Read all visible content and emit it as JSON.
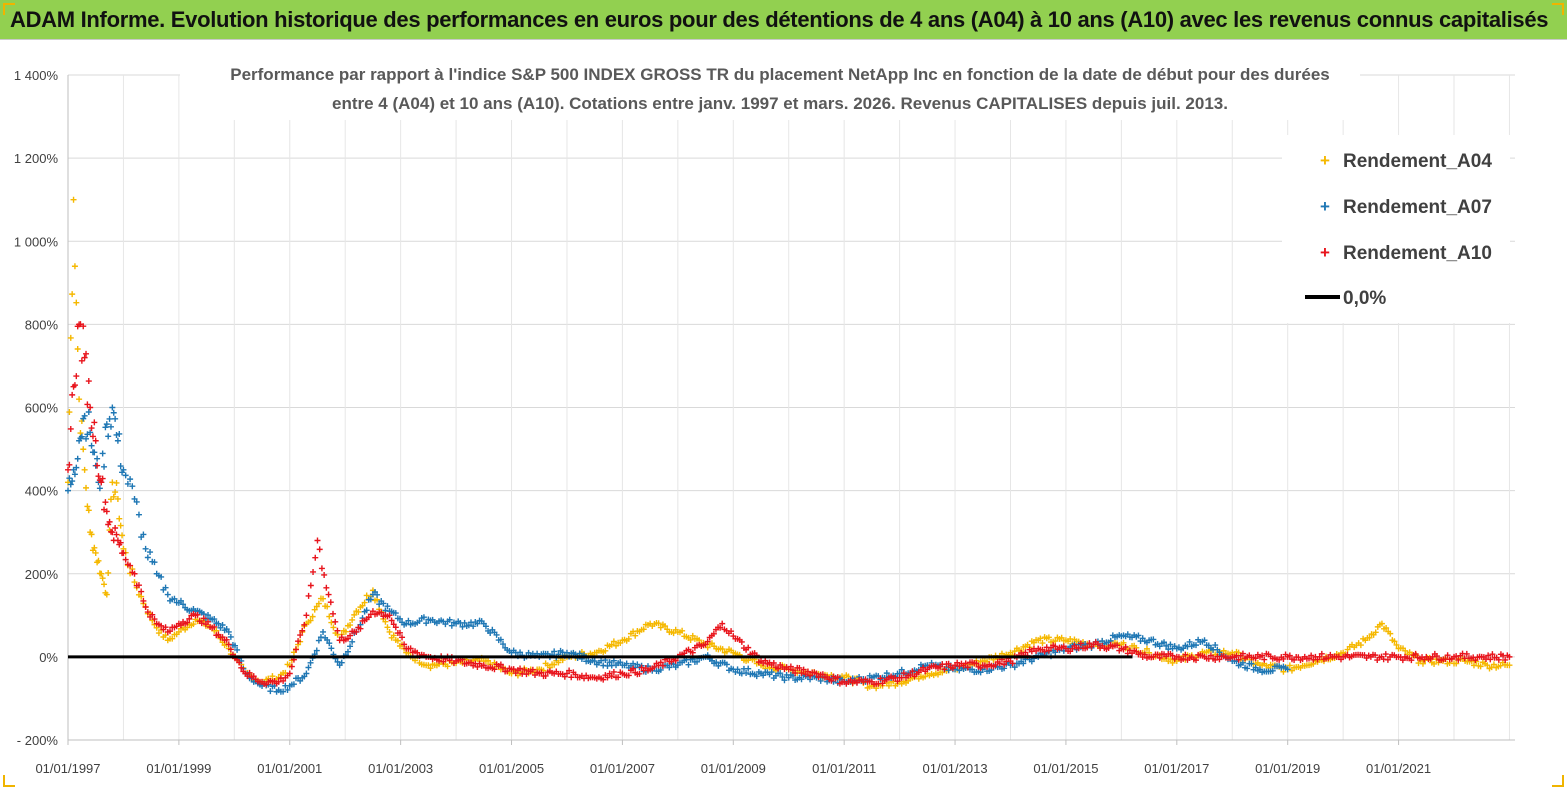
{
  "header": {
    "title": "ADAM Informe. Evolution historique des performances en euros pour des détentions de 4 ans (A04) à 10 ans (A10) avec les revenus connus capitalisés"
  },
  "colors": {
    "header_bg": "#92d050",
    "a04": "#f5b800",
    "a07": "#1f77b4",
    "a10": "#e8141c",
    "zero": "#000000"
  },
  "chart_data": {
    "type": "scatter",
    "title_lines": [
      "Performance par rapport à l'indice S&P 500 INDEX GROSS TR  du placement NetApp Inc en fonction de la date de début pour des durées",
      "entre 4 (A04) et 10 ans (A10).  Cotations entre janv. 1997 et mars. 2026. Revenus CAPITALISES depuis juil. 2013."
    ],
    "xlabel": "",
    "ylabel": "",
    "x_range": [
      1997.0,
      2023.1
    ],
    "y_range": [
      -200,
      1400
    ],
    "y_ticks": [
      -200,
      0,
      200,
      400,
      600,
      800,
      1000,
      1200,
      1400
    ],
    "y_tick_labels": [
      "- 200%",
      "0%",
      "200%",
      "400%",
      "600%",
      "800%",
      "1 000%",
      "1 200%",
      "1 400%"
    ],
    "x_ticks": [
      1997,
      1999,
      2001,
      2003,
      2005,
      2007,
      2009,
      2011,
      2013,
      2015,
      2017,
      2019,
      2021
    ],
    "x_tick_labels": [
      "01/01/1997",
      "01/01/1999",
      "01/01/2001",
      "01/01/2003",
      "01/01/2005",
      "01/01/2007",
      "01/01/2009",
      "01/01/2011",
      "01/01/2013",
      "01/01/2015",
      "01/01/2017",
      "01/01/2019",
      "01/01/2021"
    ],
    "legend_position": "top-right",
    "series": [
      {
        "name": "Rendement_A04",
        "marker": "+",
        "color_key": "a04",
        "x": [
          1997.0,
          1997.1,
          1997.2,
          1997.3,
          1997.4,
          1997.5,
          1997.6,
          1997.7,
          1997.8,
          1997.9,
          1998.0,
          1998.2,
          1998.4,
          1998.6,
          1998.8,
          1999.0,
          1999.3,
          1999.6,
          1999.9,
          2000.2,
          2000.5,
          2000.8,
          2001.0,
          2001.3,
          2001.6,
          2001.9,
          2002.2,
          2002.5,
          2002.8,
          2003.1,
          2003.5,
          2004.0,
          2004.5,
          2005.0,
          2005.5,
          2006.0,
          2006.5,
          2007.0,
          2007.5,
          2008.0,
          2008.5,
          2009.0,
          2009.5,
          2010.0,
          2010.5,
          2011.0,
          2011.5,
          2012.0,
          2012.5,
          2013.0,
          2013.5,
          2014.0,
          2014.5,
          2015.0,
          2015.5,
          2016.0,
          2016.5,
          2017.0,
          2017.5,
          2018.0,
          2018.5,
          2019.0,
          2019.5,
          2020.0,
          2020.4,
          2020.7,
          2021.0,
          2021.4,
          2021.8,
          2022.2,
          2022.6,
          2023.0
        ],
        "y": [
          420,
          1100,
          620,
          450,
          300,
          250,
          200,
          150,
          420,
          380,
          260,
          180,
          120,
          70,
          40,
          60,
          90,
          70,
          20,
          -40,
          -60,
          -50,
          -20,
          80,
          140,
          40,
          110,
          160,
          60,
          10,
          -20,
          -15,
          -10,
          -40,
          -30,
          0,
          10,
          40,
          80,
          60,
          30,
          10,
          -20,
          -30,
          -40,
          -50,
          -70,
          -60,
          -40,
          -30,
          -10,
          10,
          40,
          40,
          30,
          30,
          10,
          -10,
          10,
          10,
          -20,
          -30,
          -10,
          10,
          40,
          80,
          20,
          -10,
          -10,
          -10,
          -20,
          -20
        ]
      },
      {
        "name": "Rendement_A07",
        "marker": "+",
        "color_key": "a07",
        "x": [
          1997.0,
          1997.1,
          1997.2,
          1997.3,
          1997.4,
          1997.5,
          1997.6,
          1997.7,
          1997.8,
          1997.9,
          1998.0,
          1998.2,
          1998.4,
          1998.6,
          1998.8,
          1999.0,
          1999.3,
          1999.6,
          1999.9,
          2000.2,
          2000.5,
          2000.8,
          2001.0,
          2001.3,
          2001.6,
          2001.9,
          2002.2,
          2002.5,
          2002.8,
          2003.1,
          2003.5,
          2004.0,
          2004.5,
          2005.0,
          2005.5,
          2006.0,
          2006.5,
          2007.0,
          2007.5,
          2008.0,
          2008.5,
          2009.0,
          2009.5,
          2010.0,
          2010.5,
          2011.0,
          2011.5,
          2012.0,
          2012.5,
          2013.0,
          2013.5,
          2014.0,
          2014.5,
          2015.0,
          2015.5,
          2016.0,
          2016.5,
          2017.0,
          2017.5,
          2018.0,
          2018.5,
          2019.0
        ],
        "y": [
          400,
          450,
          520,
          580,
          540,
          460,
          420,
          560,
          600,
          520,
          450,
          380,
          260,
          200,
          150,
          130,
          110,
          90,
          60,
          -40,
          -70,
          -80,
          -70,
          -40,
          60,
          -20,
          60,
          150,
          110,
          80,
          90,
          80,
          80,
          10,
          0,
          10,
          -10,
          -20,
          -30,
          -20,
          0,
          -30,
          -40,
          -50,
          -50,
          -60,
          -50,
          -40,
          -20,
          -30,
          -30,
          -20,
          0,
          20,
          30,
          50,
          40,
          20,
          40,
          -10,
          -30,
          -30
        ]
      },
      {
        "name": "Rendement_A10",
        "marker": "+",
        "color_key": "a10",
        "x": [
          1997.0,
          1997.1,
          1997.2,
          1997.3,
          1997.4,
          1997.5,
          1997.6,
          1997.7,
          1997.8,
          1997.9,
          1998.0,
          1998.2,
          1998.4,
          1998.6,
          1998.8,
          1999.0,
          1999.3,
          1999.6,
          1999.9,
          2000.2,
          2000.5,
          2000.8,
          2001.0,
          2001.3,
          2001.5,
          2001.7,
          2001.9,
          2002.2,
          2002.5,
          2002.8,
          2003.1,
          2003.5,
          2004.0,
          2004.5,
          2005.0,
          2005.5,
          2006.0,
          2006.5,
          2007.0,
          2007.5,
          2008.0,
          2008.5,
          2008.8,
          2009.0,
          2009.5,
          2010.0,
          2010.5,
          2011.0,
          2011.5,
          2012.0,
          2012.5,
          2013.0,
          2013.5,
          2014.0,
          2014.5,
          2015.0,
          2015.5,
          2016.0,
          2016.5,
          2017.0,
          2017.5,
          2018.0,
          2018.5,
          2019.0,
          2019.5,
          2020.0,
          2020.5,
          2021.0,
          2021.5,
          2022.0,
          2022.5,
          2023.0
        ],
        "y": [
          450,
          650,
          800,
          720,
          600,
          520,
          420,
          350,
          300,
          280,
          250,
          200,
          120,
          80,
          60,
          80,
          100,
          70,
          30,
          -40,
          -60,
          -60,
          -40,
          100,
          280,
          150,
          40,
          60,
          110,
          100,
          20,
          0,
          -10,
          -20,
          -30,
          -40,
          -40,
          -50,
          -40,
          -30,
          0,
          30,
          80,
          50,
          -10,
          -30,
          -40,
          -60,
          -60,
          -50,
          -30,
          -20,
          -20,
          -10,
          20,
          20,
          30,
          20,
          0,
          0,
          0,
          0,
          0,
          0,
          0,
          0,
          0,
          0,
          0,
          0,
          0,
          0
        ]
      }
    ],
    "reference_line": {
      "name": "0,0%",
      "value": 0,
      "color_key": "zero"
    }
  }
}
